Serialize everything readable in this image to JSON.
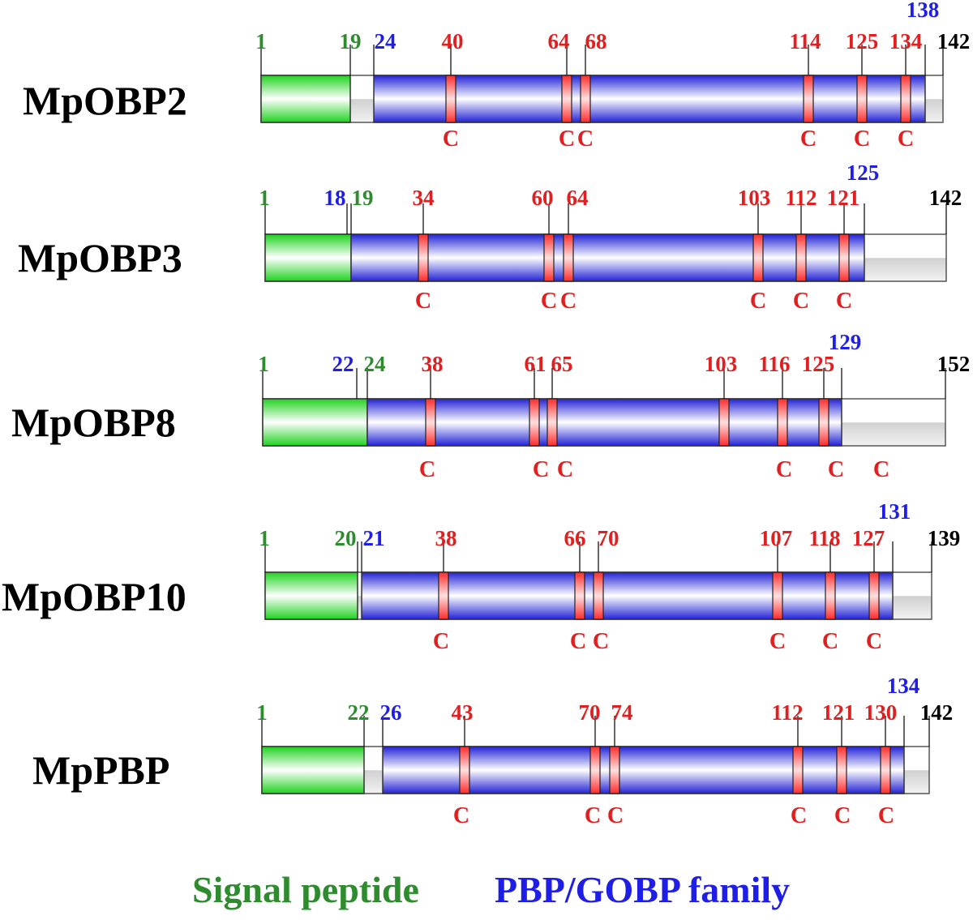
{
  "colors": {
    "signal": "#2e8b2e",
    "family": "#1e1ee6",
    "cysteine": "#e02020",
    "end": "#000000"
  },
  "proteins": [
    {
      "name": "MpOBP2",
      "length_label": "142",
      "signal_start_label": "1",
      "signal_end_label": "19",
      "family_start_label": "24",
      "family_end_label": "138",
      "cysteine_positions": [
        "40",
        "64",
        "68",
        "114",
        "125",
        "134"
      ],
      "cysteine_letters": [
        "C",
        "C",
        "C",
        "C",
        "C",
        "C"
      ]
    },
    {
      "name": "MpOBP3",
      "length_label": "142",
      "signal_start_label": "1",
      "family_start_label": "18",
      "signal_end_label": "19",
      "family_end_label": "125",
      "cysteine_positions": [
        "34",
        "60",
        "64",
        "103",
        "112",
        "121"
      ],
      "cysteine_letters": [
        "C",
        "C",
        "C",
        "C",
        "C",
        "C"
      ]
    },
    {
      "name": "MpOBP8",
      "length_label": "152",
      "signal_start_label": "1",
      "family_start_label": "22",
      "signal_end_label": "24",
      "family_end_label": "129",
      "cysteine_positions": [
        "38",
        "61",
        "65",
        "103",
        "116",
        "125"
      ],
      "cysteine_letters": [
        "C",
        "C",
        "C",
        "C",
        "C",
        "C"
      ]
    },
    {
      "name": "MpOBP10",
      "length_label": "139",
      "signal_start_label": "1",
      "signal_end_label": "20",
      "family_start_label": "21",
      "family_end_label": "131",
      "cysteine_positions": [
        "38",
        "66",
        "70",
        "107",
        "118",
        "127"
      ],
      "cysteine_letters": [
        "C",
        "C",
        "C",
        "C",
        "C",
        "C"
      ]
    },
    {
      "name": "MpPBP",
      "length_label": "142",
      "signal_start_label": "1",
      "signal_end_label": "22",
      "family_start_label": "26",
      "family_end_label": "134",
      "cysteine_positions": [
        "43",
        "70",
        "74",
        "112",
        "121",
        "130"
      ],
      "cysteine_letters": [
        "C",
        "C",
        "C",
        "C",
        "C",
        "C"
      ]
    }
  ],
  "legend": {
    "signal_peptide": "Signal peptide",
    "family": "PBP/GOBP family"
  }
}
